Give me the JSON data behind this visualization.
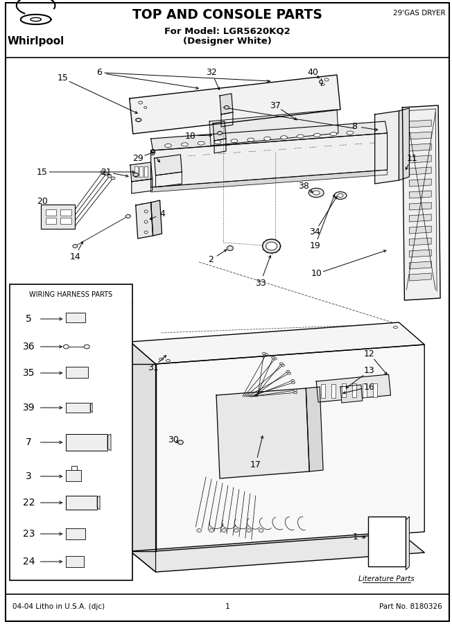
{
  "title": "TOP AND CONSOLE PARTS",
  "subtitle1": "For Model: LGR5620KQ2",
  "subtitle2": "(Designer White)",
  "top_right_text": "29'GAS DRYER",
  "bottom_left": "04-04 Litho in U.S.A. (djc)",
  "bottom_center": "1",
  "bottom_right": "Part No. 8180326",
  "wiring_box_title": "WIRING HARNESS PARTS",
  "literature_label": "Literature Parts",
  "bg_color": "#ffffff"
}
